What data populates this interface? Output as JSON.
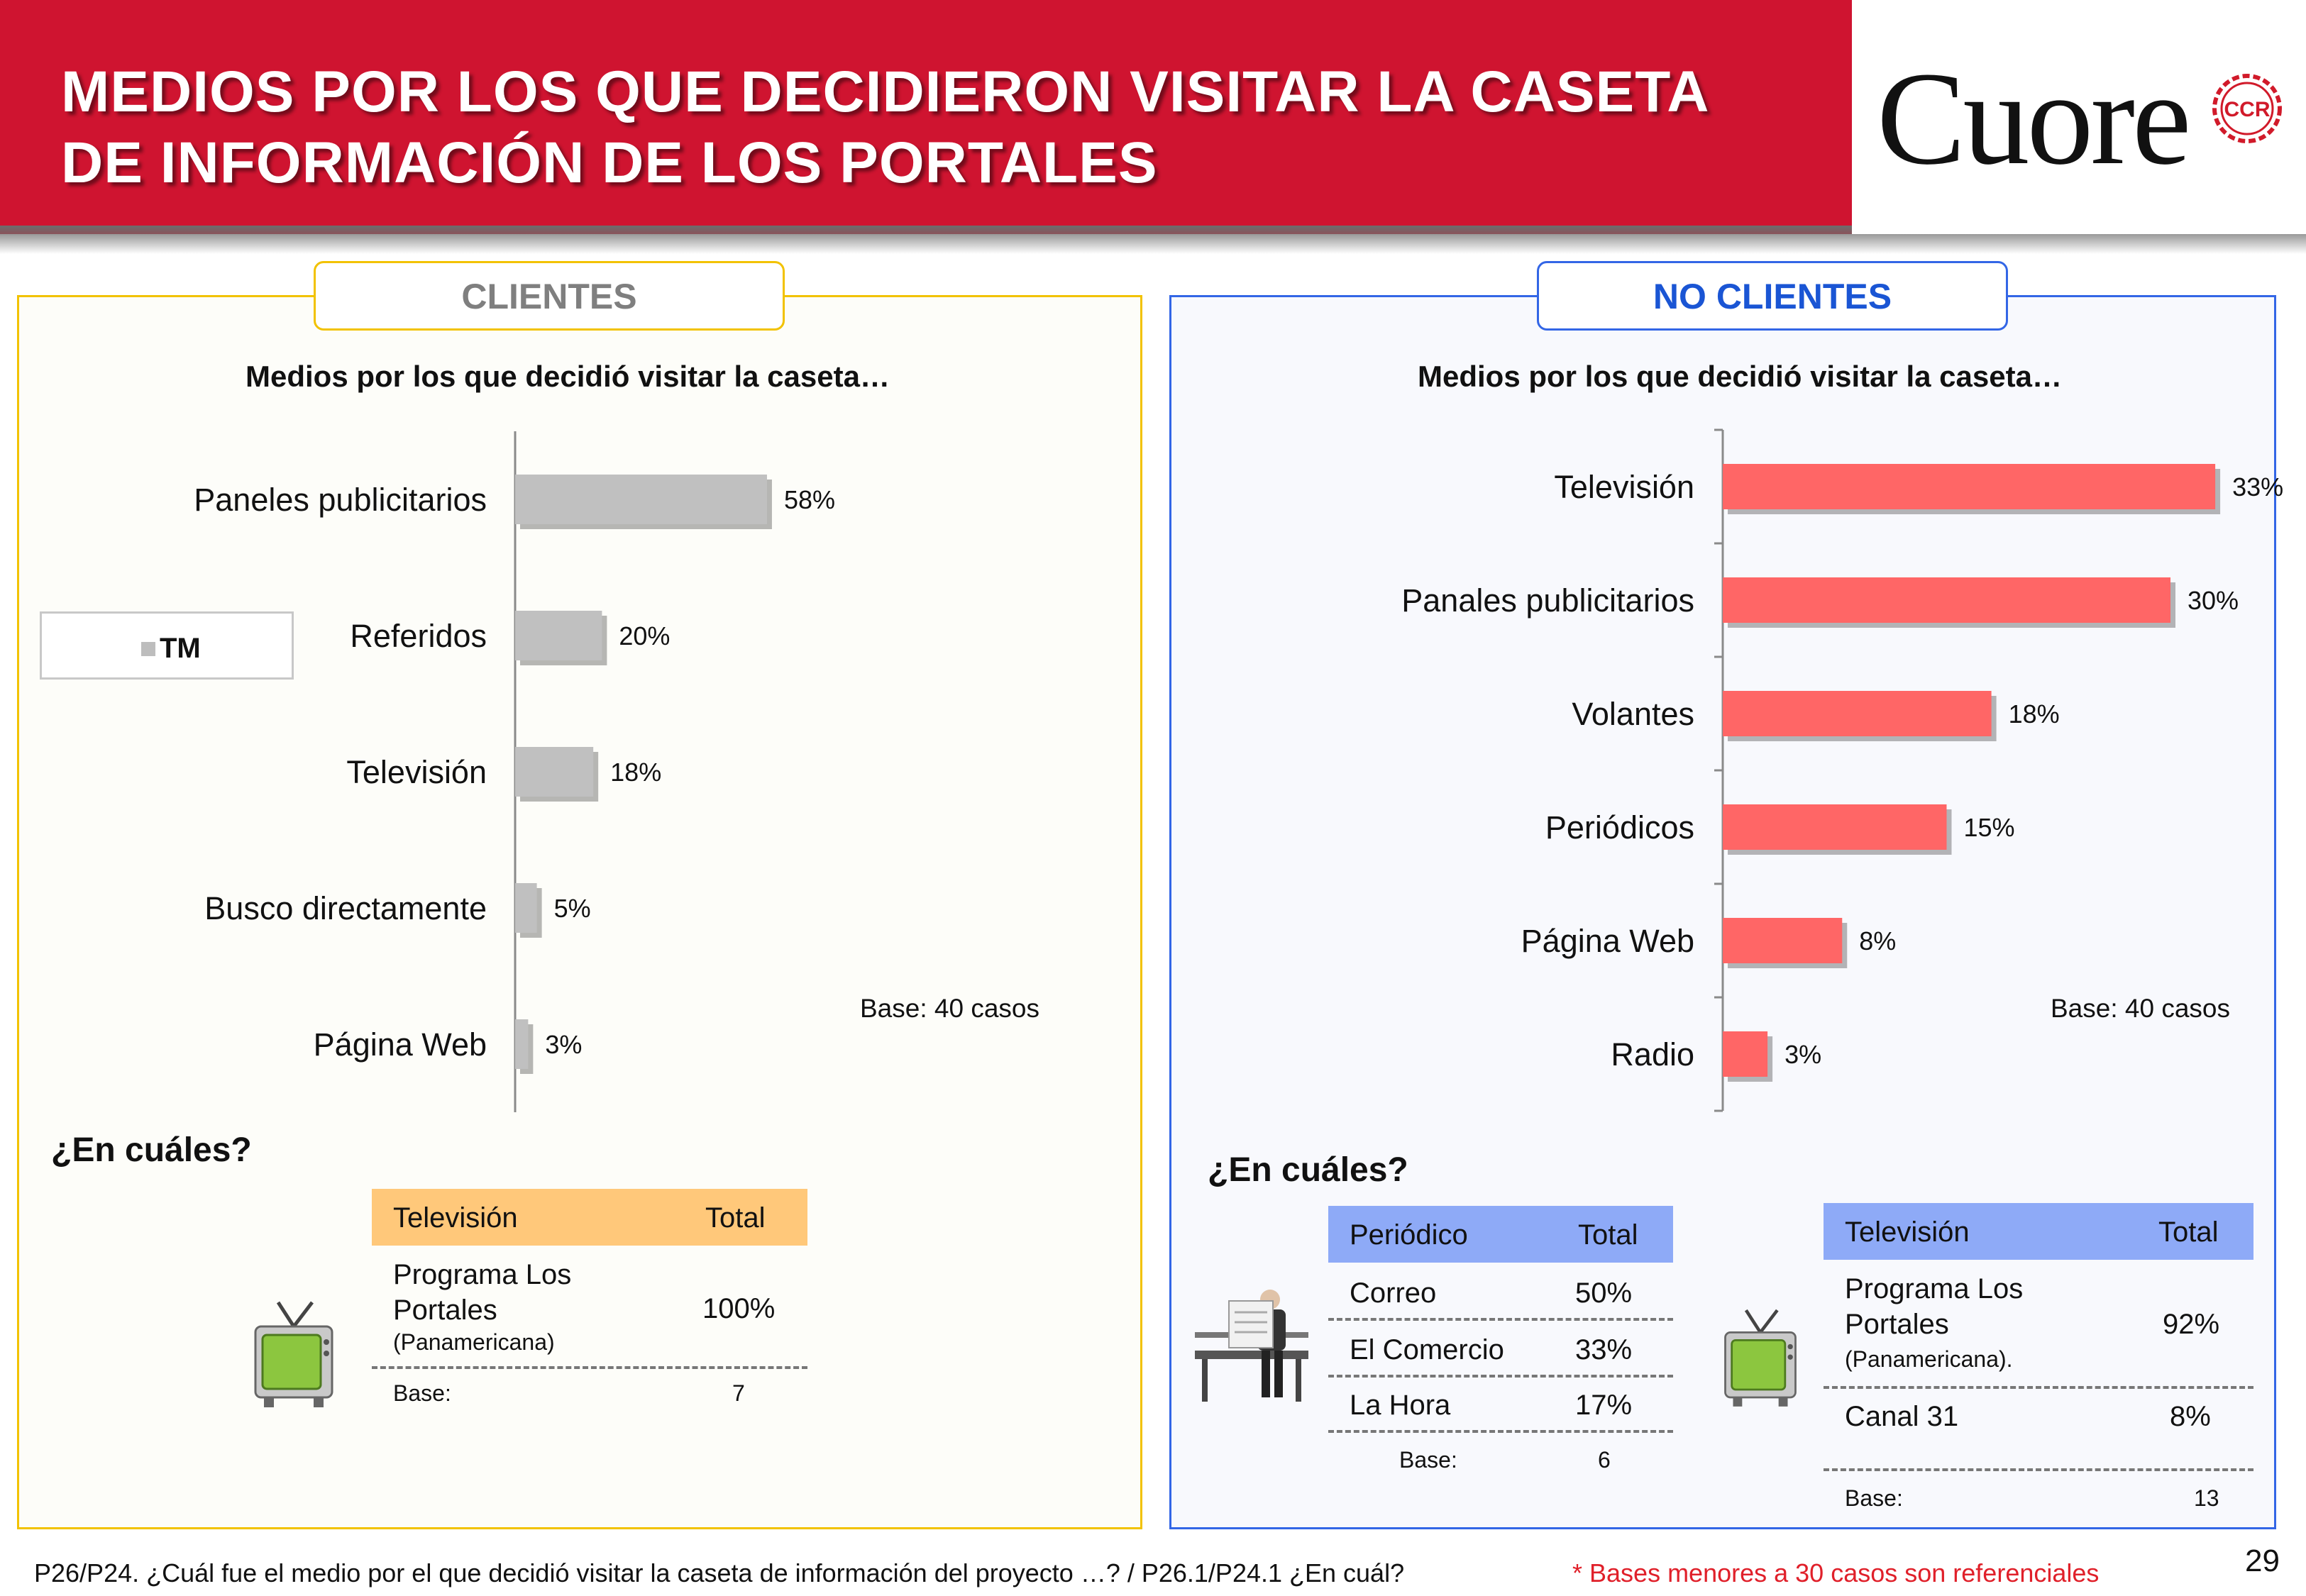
{
  "header": {
    "title": "MEDIOS POR LOS QUE DECIDIERON VISITAR LA CASETA DE INFORMACIÓN  DE LOS PORTALES",
    "logo_text": "Cuore",
    "logo_seal_text": "CCR"
  },
  "colors": {
    "header_red": "#cf1430",
    "clientes_bar": "#c0c0c0",
    "no_clientes_bar": "#ff6666",
    "clientes_border": "#f2c200",
    "no_clientes_border": "#3366e6",
    "table_orange": "#ffc87a",
    "table_blue": "#8eaaf7"
  },
  "chart_data": [
    {
      "type": "bar",
      "orientation": "horizontal",
      "panel": "CLIENTES",
      "title": "Medios por los que decidió visitar la caseta…",
      "categories": [
        "Paneles publicitarios",
        "Referidos",
        "Televisión",
        "Busco directamente",
        "Página Web"
      ],
      "series": [
        {
          "name": "TM",
          "values": [
            58,
            20,
            18,
            5,
            3
          ]
        }
      ],
      "value_labels": [
        "58%",
        "20%",
        "18%",
        "5%",
        "3%"
      ],
      "unit": "%",
      "xlim": [
        0,
        100
      ],
      "legend": "left",
      "grid": false,
      "base": "Base: 40 casos"
    },
    {
      "type": "bar",
      "orientation": "horizontal",
      "panel": "NO CLIENTES",
      "title": "Medios por los que decidió visitar la caseta…",
      "categories": [
        "Televisión",
        "Panales publicitarios",
        "Volantes",
        "Periódicos",
        "Página Web",
        "Radio"
      ],
      "series": [
        {
          "values": [
            33,
            30,
            18,
            15,
            8,
            3
          ]
        }
      ],
      "value_labels": [
        "33%",
        "30%",
        "18%",
        "15%",
        "8%",
        "3%"
      ],
      "unit": "%",
      "xlim": [
        0,
        60
      ],
      "grid": false,
      "base": "Base: 40 casos"
    }
  ],
  "clientes": {
    "tab_label": "CLIENTES",
    "question": "¿En cuáles?",
    "tv_table": {
      "header_left": "Televisión",
      "header_right": "Total",
      "row_main_line1": "Programa Los",
      "row_main_line2": "Portales",
      "row_main_sub": "(Panamericana)",
      "row_main_value": "100%",
      "base_label": "Base:",
      "base_value": "7"
    }
  },
  "no_clientes": {
    "tab_label": "NO CLIENTES",
    "question": "¿En cuáles?",
    "periodico_table": {
      "header_left": "Periódico",
      "header_right": "Total",
      "rows": [
        {
          "label": "Correo",
          "value": "50%"
        },
        {
          "label": "El Comercio",
          "value": "33%"
        },
        {
          "label": "La Hora",
          "value": "17%"
        }
      ],
      "base_label": "Base:",
      "base_value": "6"
    },
    "tv_table": {
      "header_left": "Televisión",
      "header_right": "Total",
      "row_main_line1": "Programa Los",
      "row_main_line2": "Portales",
      "row_main_sub": "(Panamericana).",
      "row_main_value": "92%",
      "row2_label": "Canal 31",
      "row2_value": "8%",
      "base_label": "Base:",
      "base_value": "13"
    }
  },
  "footer": {
    "question_text": "P26/P24. ¿Cuál fue el medio por el que decidió visitar la caseta de información del proyecto …? / P26.1/P24.1 ¿En cuál?",
    "note": "* Bases menores a 30 casos son referenciales",
    "page_number": "29"
  }
}
